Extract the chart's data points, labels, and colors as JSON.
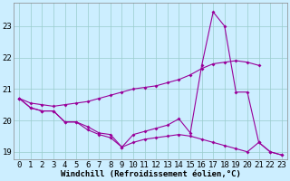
{
  "x": [
    0,
    1,
    2,
    3,
    4,
    5,
    6,
    7,
    8,
    9,
    10,
    11,
    12,
    13,
    14,
    15,
    16,
    17,
    18,
    19,
    20,
    21,
    22,
    23
  ],
  "line_jagged": [
    20.7,
    20.4,
    20.3,
    20.3,
    19.95,
    19.95,
    19.8,
    19.6,
    19.55,
    19.15,
    19.55,
    19.65,
    19.75,
    19.85,
    20.05,
    19.6,
    21.75,
    23.45,
    23.0,
    20.9,
    20.9,
    19.3,
    19.0,
    18.9
  ],
  "line_upper": [
    20.7,
    20.55,
    20.5,
    20.45,
    20.5,
    20.55,
    20.6,
    20.7,
    20.8,
    20.9,
    21.0,
    21.05,
    21.1,
    21.2,
    21.3,
    21.45,
    21.65,
    21.8,
    21.85,
    21.9,
    21.85,
    21.75,
    null,
    null
  ],
  "line_lower": [
    20.7,
    20.4,
    20.3,
    20.3,
    19.95,
    19.95,
    19.7,
    19.55,
    19.45,
    19.15,
    19.3,
    19.4,
    19.45,
    19.5,
    19.55,
    19.5,
    19.4,
    19.3,
    19.2,
    19.1,
    19.0,
    19.3,
    19.0,
    18.9
  ],
  "ylim": [
    18.75,
    23.75
  ],
  "xlim": [
    -0.5,
    23.5
  ],
  "yticks": [
    19,
    20,
    21,
    22,
    23
  ],
  "xticks": [
    0,
    1,
    2,
    3,
    4,
    5,
    6,
    7,
    8,
    9,
    10,
    11,
    12,
    13,
    14,
    15,
    16,
    17,
    18,
    19,
    20,
    21,
    22,
    23
  ],
  "xlabel": "Windchill (Refroidissement éolien,°C)",
  "line_color": "#990099",
  "bg_color": "#cceeff",
  "grid_color": "#99cccc",
  "label_fontsize": 6.5,
  "tick_fontsize": 6.5
}
